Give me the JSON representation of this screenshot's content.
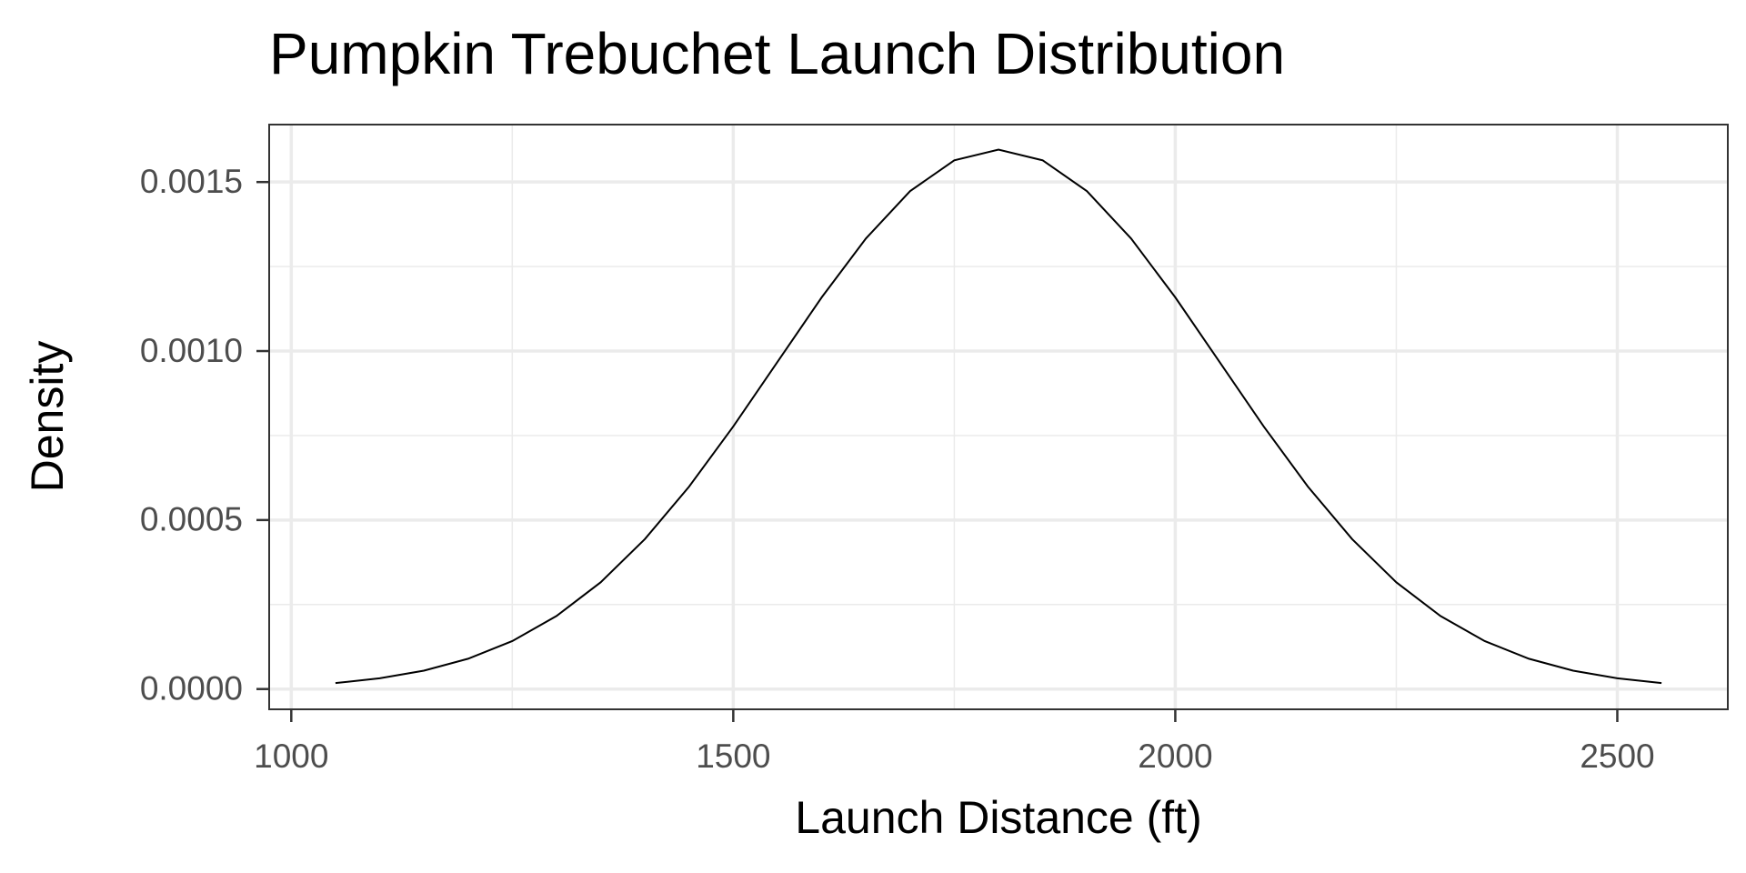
{
  "chart_data": {
    "type": "line",
    "title": "Pumpkin Trebuchet Launch Distribution",
    "x_label": "Launch Distance (ft)",
    "y_label": "Density",
    "x": [
      1050,
      1100,
      1150,
      1200,
      1250,
      1300,
      1350,
      1400,
      1450,
      1500,
      1550,
      1600,
      1650,
      1700,
      1750,
      1800,
      1850,
      1900,
      1950,
      2000,
      2050,
      2100,
      2150,
      2200,
      2250,
      2300,
      2350,
      2400,
      2450,
      2500,
      2550
    ],
    "series": [
      {
        "name": "Density",
        "color": "#000000",
        "values": [
          1.77e-05,
          3.17e-05,
          5.43e-05,
          8.96e-05,
          0.0001419,
          0.000216,
          0.0003158,
          0.0004437,
          0.0005989,
          0.0007768,
          0.0009679,
          0.0011588,
          0.0013329,
          0.0014731,
          0.0015642,
          0.0015958,
          0.0015642,
          0.0014731,
          0.0013329,
          0.0011588,
          0.0009679,
          0.0007768,
          0.0005989,
          0.0004437,
          0.0003158,
          0.000216,
          0.0001419,
          8.96e-05,
          5.43e-05,
          3.17e-05,
          1.77e-05
        ]
      }
    ],
    "xlim": [
      975,
      2625
    ],
    "xticks": [
      1000,
      1500,
      2000,
      2500
    ],
    "ylim": [
      -6e-05,
      0.00167
    ],
    "yticks": [
      {
        "value": 0,
        "label": "0.0000"
      },
      {
        "value": 0.0005,
        "label": "0.0005"
      },
      {
        "value": 0.001,
        "label": "0.0010"
      },
      {
        "value": 0.0015,
        "label": "0.0015"
      }
    ],
    "grid": true
  }
}
